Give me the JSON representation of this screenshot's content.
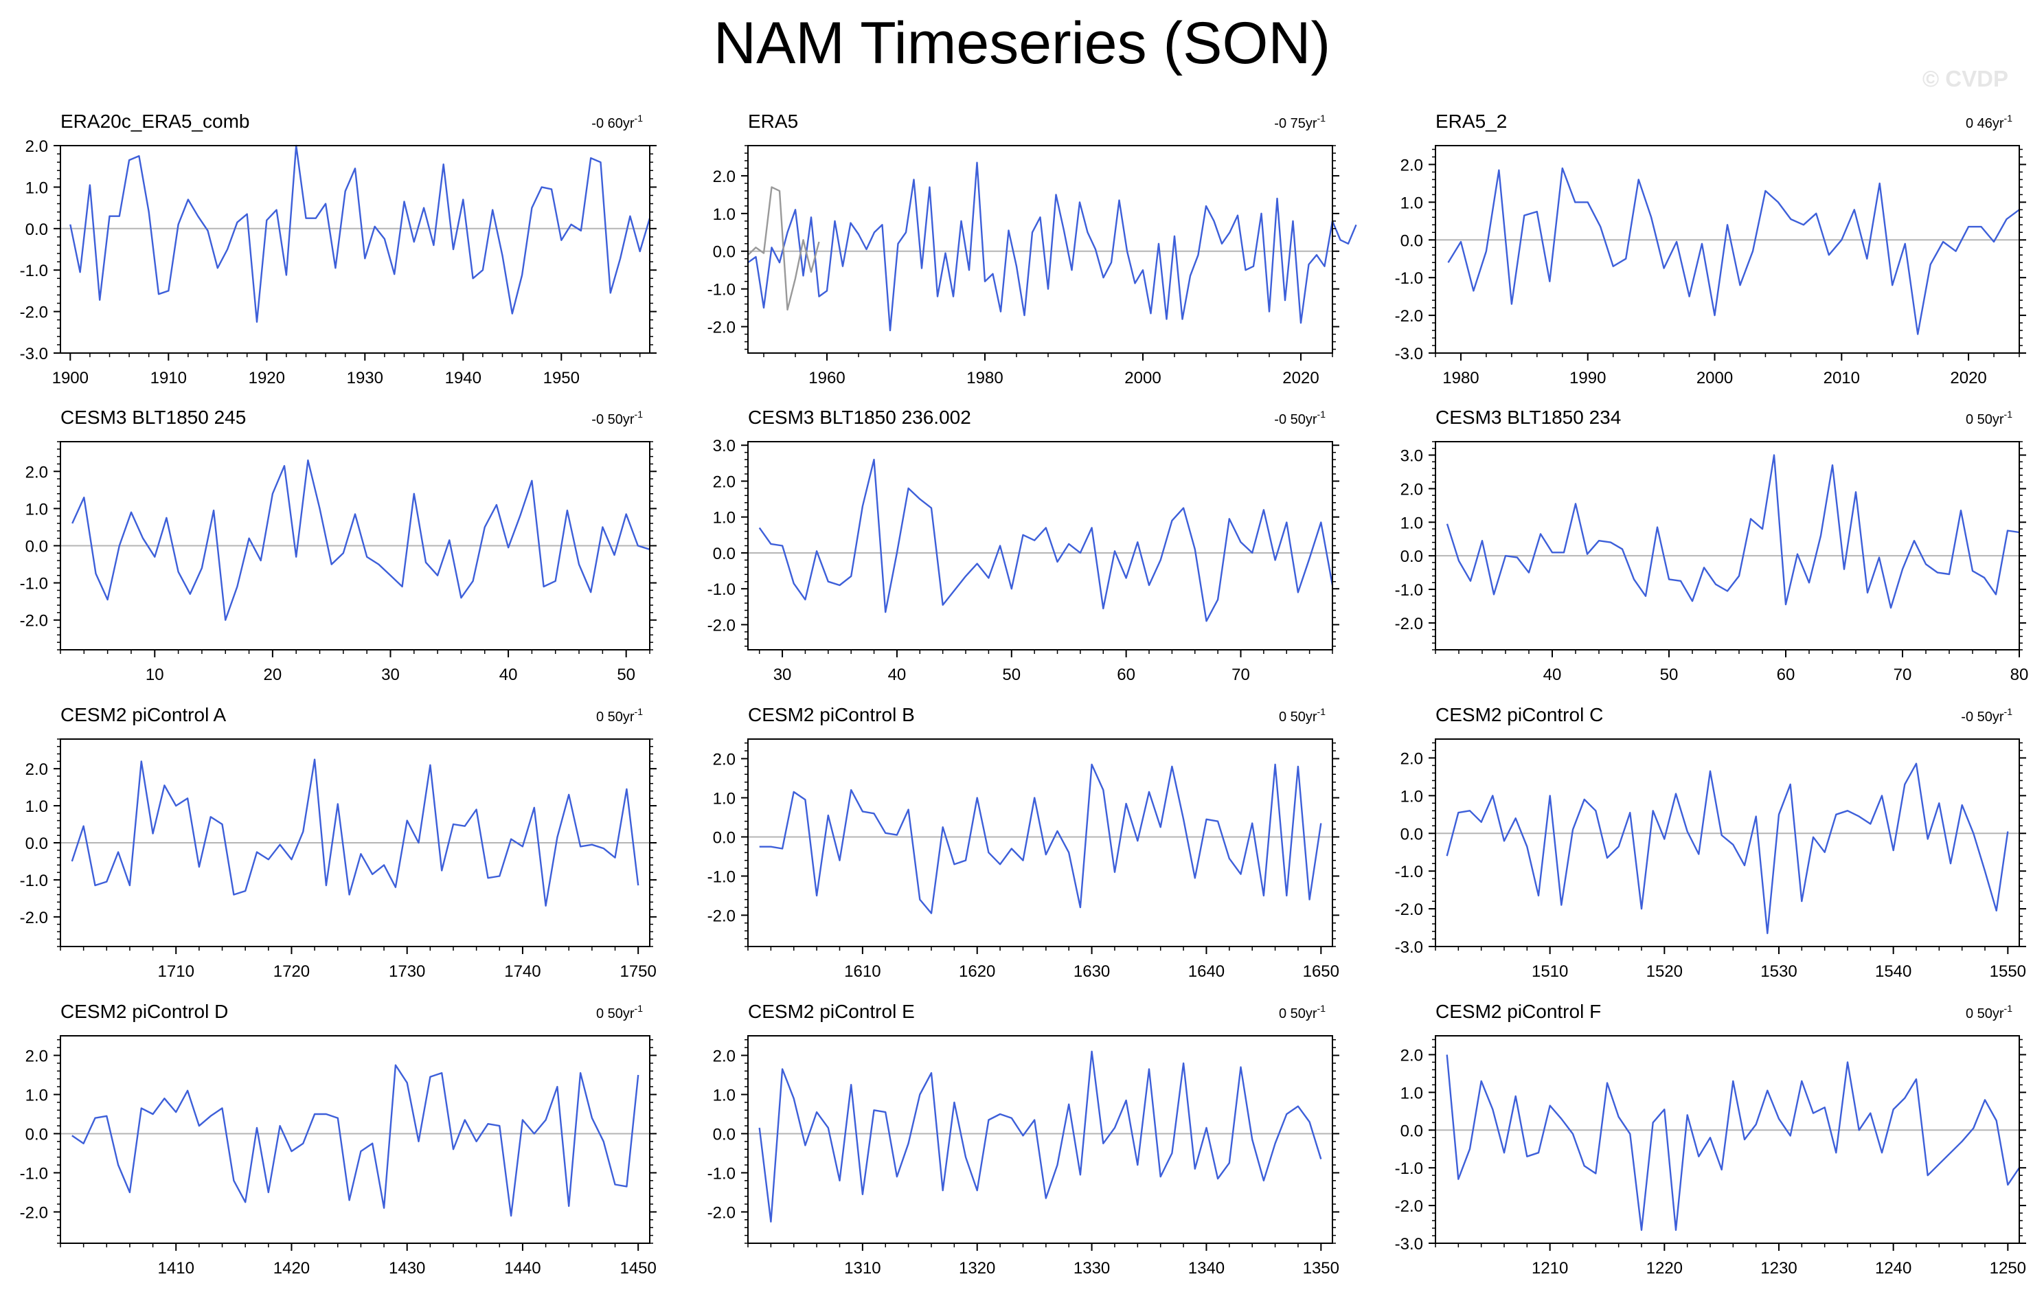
{
  "title": "NAM Timeseries (SON)",
  "watermark": "© CVDP",
  "colors": {
    "series": "#3d5fd9",
    "secondary": "#999999",
    "zero_line": "#b5b5b5",
    "axis": "#000000"
  },
  "chart_data": [
    {
      "type": "line",
      "title": "ERA20c_ERA5_comb",
      "trend": "-0 60yr",
      "trend_sup": "-1",
      "xlim": [
        1899,
        1959
      ],
      "ylim": [
        -3.0,
        2.0
      ],
      "xticks": [
        1900,
        1910,
        1920,
        1930,
        1940,
        1950
      ],
      "yticks": [
        "2.0",
        "1.0",
        "0.0",
        "-1.0",
        "-2.0",
        "-3.0"
      ],
      "x_start": 1900,
      "series": [
        {
          "values": [
            0.1,
            -1.05,
            1.05,
            -1.72,
            0.3,
            0.3,
            1.65,
            1.75,
            0.4,
            -1.58,
            -1.5,
            0.1,
            0.7,
            0.3,
            -0.05,
            -0.95,
            -0.5,
            0.15,
            0.35,
            -2.25,
            0.2,
            0.45,
            -1.12,
            2.0,
            0.25,
            0.25,
            0.6,
            -0.95,
            0.9,
            1.45,
            -0.72,
            0.05,
            -0.25,
            -1.1,
            0.65,
            -0.32,
            0.5,
            -0.4,
            1.55,
            -0.5,
            0.7,
            -1.2,
            -1.0,
            0.45,
            -0.65,
            -2.05,
            -1.12,
            0.5,
            1.0,
            0.95,
            -0.28,
            0.1,
            -0.05,
            1.7,
            1.6,
            -1.55,
            -0.72,
            0.3,
            -0.55,
            0.25
          ]
        }
      ]
    },
    {
      "type": "line",
      "title": "ERA5",
      "trend": "-0 75yr",
      "trend_sup": "-1",
      "xlim": [
        1950,
        2024
      ],
      "ylim": [
        -2.7,
        2.8
      ],
      "xticks": [
        1960,
        1980,
        2000,
        2020
      ],
      "yticks": [
        "2.0",
        "1.0",
        "0.0",
        "-1.0",
        "-2.0"
      ],
      "x_start": 1950,
      "series": [
        {
          "values": [
            -0.3,
            -0.15,
            -1.5,
            0.1,
            -0.3,
            0.5,
            1.1,
            -0.65,
            0.9,
            -1.2,
            -1.05,
            0.8,
            -0.4,
            0.75,
            0.45,
            0.05,
            0.5,
            0.7,
            -2.1,
            0.2,
            0.5,
            1.9,
            -0.45,
            1.7,
            -1.2,
            -0.05,
            -1.2,
            0.8,
            -0.5,
            2.35,
            -0.8,
            -0.6,
            -1.6,
            0.55,
            -0.4,
            -1.7,
            0.5,
            0.9,
            -1.0,
            1.5,
            0.55,
            -0.5,
            1.3,
            0.5,
            0.05,
            -0.7,
            -0.3,
            1.35,
            0.0,
            -0.85,
            -0.5,
            -1.65,
            0.2,
            -1.8,
            0.4,
            -1.8,
            -0.65,
            -0.1,
            1.2,
            0.8,
            0.2,
            0.5,
            0.95,
            -0.5,
            -0.4,
            1.0,
            -1.6,
            1.4,
            -1.3,
            0.8,
            -1.9,
            -0.35,
            -0.1,
            -0.4,
            0.8,
            0.3,
            0.2,
            0.7
          ]
        },
        {
          "values": [
            -0.1,
            0.1,
            -0.05,
            1.7,
            1.6,
            -1.55,
            -0.72,
            0.3,
            -0.55,
            0.25
          ],
          "color": "#999999"
        }
      ]
    },
    {
      "type": "line",
      "title": "ERA5_2",
      "trend": "0 46yr",
      "trend_sup": "-1",
      "xlim": [
        1978,
        2024
      ],
      "ylim": [
        -3.0,
        2.5
      ],
      "xticks": [
        1980,
        1990,
        2000,
        2010,
        2020
      ],
      "yticks": [
        "2.0",
        "1.0",
        "0.0",
        "-1.0",
        "-2.0",
        "-3.0"
      ],
      "x_start": 1979,
      "series": [
        {
          "values": [
            -0.6,
            -0.05,
            -1.35,
            -0.3,
            1.85,
            -1.7,
            0.65,
            0.75,
            -1.1,
            1.9,
            1.0,
            1.0,
            0.35,
            -0.7,
            -0.5,
            1.6,
            0.6,
            -0.75,
            -0.05,
            -1.5,
            -0.1,
            -2.0,
            0.4,
            -1.2,
            -0.3,
            1.3,
            1.0,
            0.55,
            0.4,
            0.7,
            -0.4,
            0.0,
            0.8,
            -0.5,
            1.5,
            -1.2,
            -0.1,
            -2.5,
            -0.65,
            -0.05,
            -0.3,
            0.35,
            0.35,
            -0.05,
            0.55,
            0.8
          ]
        }
      ]
    },
    {
      "type": "line",
      "title": "CESM3 BLT1850 245",
      "trend": "-0 50yr",
      "trend_sup": "-1",
      "xlim": [
        2,
        52
      ],
      "ylim": [
        -2.8,
        2.8
      ],
      "xticks": [
        10,
        20,
        30,
        40,
        50
      ],
      "yticks": [
        "2.0",
        "1.0",
        "0.0",
        "-1.0",
        "-2.0"
      ],
      "x_start": 3,
      "series": [
        {
          "values": [
            0.6,
            1.3,
            -0.75,
            -1.45,
            0.0,
            0.9,
            0.2,
            -0.3,
            0.75,
            -0.7,
            -1.3,
            -0.6,
            0.95,
            -2.0,
            -1.1,
            0.2,
            -0.4,
            1.4,
            2.15,
            -0.3,
            2.3,
            1.0,
            -0.5,
            -0.2,
            0.85,
            -0.3,
            -0.5,
            -0.8,
            -1.1,
            1.4,
            -0.45,
            -0.8,
            0.15,
            -1.4,
            -0.95,
            0.5,
            1.1,
            -0.05,
            0.8,
            1.75,
            -1.1,
            -0.95,
            0.95,
            -0.5,
            -1.25,
            0.5,
            -0.25,
            0.85,
            0.0,
            -0.1
          ]
        }
      ]
    },
    {
      "type": "line",
      "title": "CESM3 BLT1850 236.002",
      "trend": "-0 50yr",
      "trend_sup": "-1",
      "xlim": [
        27,
        78
      ],
      "ylim": [
        -2.7,
        3.1
      ],
      "xticks": [
        30,
        40,
        50,
        60,
        70
      ],
      "yticks": [
        "3.0",
        "2.0",
        "1.0",
        "0.0",
        "-1.0",
        "-2.0"
      ],
      "x_start": 28,
      "series": [
        {
          "values": [
            0.7,
            0.25,
            0.2,
            -0.85,
            -1.3,
            0.05,
            -0.8,
            -0.9,
            -0.65,
            1.3,
            2.6,
            -1.65,
            0.0,
            1.8,
            1.5,
            1.25,
            -1.45,
            -1.05,
            -0.65,
            -0.3,
            -0.7,
            0.2,
            -1.0,
            0.5,
            0.35,
            0.7,
            -0.25,
            0.25,
            0.0,
            0.7,
            -1.55,
            0.05,
            -0.7,
            0.3,
            -0.9,
            -0.2,
            0.9,
            1.25,
            0.1,
            -1.9,
            -1.3,
            0.95,
            0.3,
            0.0,
            1.2,
            -0.2,
            0.85,
            -1.1,
            -0.15,
            0.85,
            -0.9
          ]
        }
      ]
    },
    {
      "type": "line",
      "title": "CESM3 BLT1850 234",
      "trend": "0 50yr",
      "trend_sup": "-1",
      "xlim": [
        30,
        80
      ],
      "ylim": [
        -2.8,
        3.4
      ],
      "xticks": [
        40,
        50,
        60,
        70,
        80
      ],
      "yticks": [
        "3.0",
        "2.0",
        "1.0",
        "0.0",
        "-1.0",
        "-2.0"
      ],
      "x_start": 31,
      "series": [
        {
          "values": [
            0.95,
            -0.15,
            -0.75,
            0.45,
            -1.15,
            0.0,
            -0.05,
            -0.5,
            0.65,
            0.1,
            0.1,
            1.55,
            0.05,
            0.45,
            0.4,
            0.2,
            -0.7,
            -1.2,
            0.85,
            -0.7,
            -0.75,
            -1.35,
            -0.35,
            -0.85,
            -1.05,
            -0.6,
            1.1,
            0.8,
            3.0,
            -1.45,
            0.05,
            -0.8,
            0.6,
            2.7,
            -0.4,
            1.9,
            -1.1,
            -0.05,
            -1.55,
            -0.4,
            0.45,
            -0.25,
            -0.5,
            -0.55,
            1.35,
            -0.45,
            -0.65,
            -1.15,
            0.75,
            0.7
          ]
        }
      ]
    },
    {
      "type": "line",
      "title": "CESM2 piControl A",
      "trend": "0 50yr",
      "trend_sup": "-1",
      "xlim": [
        1700,
        1751
      ],
      "ylim": [
        -2.8,
        2.8
      ],
      "xticks": [
        1710,
        1720,
        1730,
        1740,
        1750
      ],
      "yticks": [
        "2.0",
        "1.0",
        "0.0",
        "-1.0",
        "-2.0"
      ],
      "x_start": 1701,
      "series": [
        {
          "values": [
            -0.5,
            0.45,
            -1.15,
            -1.05,
            -0.25,
            -1.15,
            2.2,
            0.25,
            1.55,
            1.0,
            1.2,
            -0.65,
            0.7,
            0.5,
            -1.4,
            -1.3,
            -0.25,
            -0.45,
            -0.05,
            -0.45,
            0.3,
            2.25,
            -1.15,
            1.05,
            -1.4,
            -0.3,
            -0.85,
            -0.6,
            -1.2,
            0.6,
            0.0,
            2.1,
            -0.75,
            0.5,
            0.45,
            0.9,
            -0.95,
            -0.9,
            0.1,
            -0.1,
            0.95,
            -1.7,
            0.15,
            1.3,
            -0.1,
            -0.05,
            -0.15,
            -0.4,
            1.45,
            -1.15
          ]
        }
      ]
    },
    {
      "type": "line",
      "title": "CESM2 piControl B",
      "trend": "0 50yr",
      "trend_sup": "-1",
      "xlim": [
        1600,
        1651
      ],
      "ylim": [
        -2.8,
        2.5
      ],
      "xticks": [
        1610,
        1620,
        1630,
        1640,
        1650
      ],
      "yticks": [
        "2.0",
        "1.0",
        "0.0",
        "-1.0",
        "-2.0"
      ],
      "x_start": 1601,
      "series": [
        {
          "values": [
            -0.25,
            -0.25,
            -0.3,
            1.15,
            0.95,
            -1.5,
            0.55,
            -0.6,
            1.2,
            0.65,
            0.6,
            0.1,
            0.05,
            0.7,
            -1.6,
            -1.95,
            0.25,
            -0.7,
            -0.6,
            1.0,
            -0.4,
            -0.7,
            -0.3,
            -0.6,
            1.0,
            -0.45,
            0.15,
            -0.4,
            -1.8,
            1.85,
            1.2,
            -0.9,
            0.85,
            -0.1,
            1.15,
            0.25,
            1.8,
            0.45,
            -1.05,
            0.45,
            0.4,
            -0.55,
            -0.95,
            0.35,
            -1.5,
            1.85,
            -1.5,
            1.8,
            -1.6,
            0.35
          ]
        }
      ]
    },
    {
      "type": "line",
      "title": "CESM2 piControl C",
      "trend": "-0 50yr",
      "trend_sup": "-1",
      "xlim": [
        1500,
        1551
      ],
      "ylim": [
        -3.0,
        2.5
      ],
      "xticks": [
        1510,
        1520,
        1530,
        1540,
        1550
      ],
      "yticks": [
        "2.0",
        "1.0",
        "0.0",
        "-1.0",
        "-2.0",
        "-3.0"
      ],
      "x_start": 1501,
      "series": [
        {
          "values": [
            -0.6,
            0.55,
            0.6,
            0.3,
            1.0,
            -0.2,
            0.4,
            -0.35,
            -1.65,
            1.0,
            -1.9,
            0.1,
            0.9,
            0.6,
            -0.65,
            -0.35,
            0.55,
            -2.0,
            0.6,
            -0.15,
            1.05,
            0.05,
            -0.55,
            1.65,
            -0.05,
            -0.3,
            -0.85,
            0.45,
            -2.65,
            0.5,
            1.3,
            -1.8,
            -0.1,
            -0.5,
            0.5,
            0.6,
            0.45,
            0.25,
            1.0,
            -0.45,
            1.3,
            1.85,
            -0.15,
            0.8,
            -0.8,
            0.75,
            0.0,
            -1.0,
            -2.05,
            0.05
          ]
        }
      ]
    },
    {
      "type": "line",
      "title": "CESM2 piControl D",
      "trend": "0 50yr",
      "trend_sup": "-1",
      "xlim": [
        1400,
        1451
      ],
      "ylim": [
        -2.8,
        2.5
      ],
      "xticks": [
        1410,
        1420,
        1430,
        1440,
        1450
      ],
      "yticks": [
        "2.0",
        "1.0",
        "0.0",
        "-1.0",
        "-2.0"
      ],
      "x_start": 1401,
      "series": [
        {
          "values": [
            -0.05,
            -0.25,
            0.4,
            0.45,
            -0.8,
            -1.5,
            0.65,
            0.5,
            0.9,
            0.55,
            1.1,
            0.2,
            0.45,
            0.65,
            -1.2,
            -1.75,
            0.15,
            -1.5,
            0.2,
            -0.45,
            -0.25,
            0.5,
            0.5,
            0.4,
            -1.7,
            -0.45,
            -0.25,
            -1.9,
            1.75,
            1.3,
            -0.2,
            1.45,
            1.55,
            -0.4,
            0.35,
            -0.2,
            0.25,
            0.2,
            -2.1,
            0.35,
            0.0,
            0.35,
            1.2,
            -1.85,
            1.55,
            0.4,
            -0.2,
            -1.3,
            -1.35,
            1.5
          ]
        }
      ]
    },
    {
      "type": "line",
      "title": "CESM2 piControl E",
      "trend": "0 50yr",
      "trend_sup": "-1",
      "xlim": [
        1300,
        1351
      ],
      "ylim": [
        -2.8,
        2.5
      ],
      "xticks": [
        1310,
        1320,
        1330,
        1340,
        1350
      ],
      "yticks": [
        "2.0",
        "1.0",
        "0.0",
        "-1.0",
        "-2.0"
      ],
      "x_start": 1301,
      "series": [
        {
          "values": [
            0.15,
            -2.25,
            1.65,
            0.9,
            -0.3,
            0.55,
            0.15,
            -1.2,
            1.25,
            -1.55,
            0.6,
            0.55,
            -1.1,
            -0.25,
            1.0,
            1.55,
            -1.45,
            0.8,
            -0.6,
            -1.45,
            0.35,
            0.5,
            0.4,
            -0.05,
            0.35,
            -1.65,
            -0.8,
            0.75,
            -1.05,
            2.1,
            -0.25,
            0.15,
            0.85,
            -0.8,
            1.65,
            -1.1,
            -0.5,
            1.8,
            -0.9,
            0.15,
            -1.15,
            -0.75,
            1.7,
            -0.15,
            -1.2,
            -0.25,
            0.5,
            0.7,
            0.3,
            -0.65
          ]
        }
      ]
    },
    {
      "type": "line",
      "title": "CESM2 piControl F",
      "trend": "0 50yr",
      "trend_sup": "-1",
      "xlim": [
        1200,
        1251
      ],
      "ylim": [
        -3.0,
        2.5
      ],
      "xticks": [
        1210,
        1220,
        1230,
        1240,
        1250
      ],
      "yticks": [
        "2.0",
        "1.0",
        "0.0",
        "-1.0",
        "-2.0",
        "-3.0"
      ],
      "x_start": 1201,
      "series": [
        {
          "values": [
            2.0,
            -1.3,
            -0.5,
            1.3,
            0.55,
            -0.6,
            0.9,
            -0.7,
            -0.6,
            0.65,
            0.3,
            -0.1,
            -0.95,
            -1.15,
            1.25,
            0.35,
            -0.1,
            -2.65,
            0.2,
            0.55,
            -2.65,
            0.4,
            -0.7,
            -0.2,
            -1.05,
            1.3,
            -0.25,
            0.15,
            1.05,
            0.3,
            -0.15,
            1.3,
            0.45,
            0.6,
            -0.6,
            1.8,
            0.0,
            0.45,
            -0.6,
            0.55,
            0.85,
            1.35,
            -1.2,
            -0.9,
            -0.6,
            -0.3,
            0.05,
            0.8,
            0.25,
            -1.45,
            -1.0
          ]
        }
      ]
    }
  ]
}
